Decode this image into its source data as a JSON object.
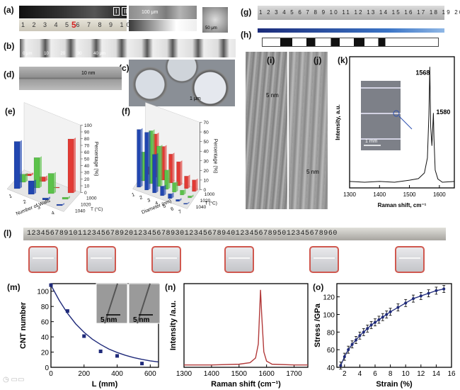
{
  "panels": {
    "a": "(a)",
    "b": "(b)",
    "c": "(c)",
    "d": "(d)",
    "e": "(e)",
    "f": "(f)",
    "g": "(g)",
    "h": "(h)",
    "i": "(i)",
    "j": "(j)",
    "k": "(k)",
    "l": "(l)",
    "m": "(m)",
    "n": "(n)",
    "o": "(o)"
  },
  "texts": {
    "a_ruler": "1 2 3 4 5 6 7 8 9 10",
    "a_mark": "5",
    "a_roman1": "I",
    "a_roman2": "II",
    "a_scale1": "100 μm",
    "a_scale2": "50 μm",
    "b_scale": "0 μm          10          20          30          40 μm",
    "c_scale": "1 μm",
    "d_scale": "10 nm",
    "i_scale": "5 nm",
    "j_scale": "5 nm",
    "k_scale": "1 mm",
    "g_ruler": "1 2 3 4 5 6 7 8 9 10 11 12 13 14 15 16 17 18 19 20",
    "l_ruler": "1234567891011234567892012345678930123456789401234567895012345678960"
  },
  "colors": {
    "blue": "#2146b0",
    "red": "#e23a34",
    "green": "#5bc24a",
    "curve_red": "#b23a3a",
    "navy": "#1f2a7a"
  },
  "chart_data": [
    {
      "id": "e",
      "type": "bar",
      "xlabel": "Number of Walls",
      "ylabel": "Percentage (%)",
      "zlabel": "T (°C)",
      "categories": [
        "1",
        "2",
        "3",
        "4"
      ],
      "ytick_labels": [
        "0",
        "10",
        "20",
        "30",
        "40",
        "50",
        "60",
        "70",
        "80",
        "90",
        "100"
      ],
      "ylim": [
        0,
        100
      ],
      "series": [
        {
          "name": "1000",
          "values": [
            3,
            7,
            0,
            80
          ]
        },
        {
          "name": "1020",
          "values": [
            12,
            45,
            30,
            3
          ]
        },
        {
          "name": "1040",
          "values": [
            70,
            20,
            3,
            2
          ]
        }
      ]
    },
    {
      "id": "f",
      "type": "bar",
      "xlabel": "Diameter (nm)",
      "ylabel": "Percentage (%)",
      "zlabel": "T (°C)",
      "categories": [
        "1",
        "2",
        "3",
        "4",
        "5",
        "6",
        "7"
      ],
      "ytick_labels": [
        "0",
        "10",
        "20",
        "30",
        "40",
        "50",
        "60",
        "70"
      ],
      "ylim": [
        0,
        70
      ],
      "series": [
        {
          "name": "1000",
          "values": [
            8,
            45,
            35,
            30,
            25,
            13,
            12
          ]
        },
        {
          "name": "1020",
          "values": [
            30,
            55,
            42,
            20,
            10,
            5,
            2
          ]
        },
        {
          "name": "1040",
          "values": [
            60,
            60,
            40,
            10,
            5,
            2,
            1
          ]
        }
      ]
    },
    {
      "id": "k",
      "type": "line",
      "xlabel": "Raman shift, cm⁻¹",
      "ylabel": "Intensity, a.u.",
      "xlim": [
        1300,
        1650
      ],
      "xticks": [
        1300,
        1400,
        1500,
        1600
      ],
      "annotations": [
        "1568",
        "1580"
      ],
      "x": [
        1300,
        1350,
        1400,
        1450,
        1500,
        1530,
        1550,
        1560,
        1565,
        1568,
        1571,
        1575,
        1578,
        1580,
        1582,
        1586,
        1595,
        1610,
        1650
      ],
      "y": [
        0.05,
        0.05,
        0.05,
        0.05,
        0.06,
        0.08,
        0.12,
        0.25,
        0.6,
        1.0,
        0.5,
        0.35,
        0.5,
        0.62,
        0.4,
        0.15,
        0.07,
        0.05,
        0.05
      ]
    },
    {
      "id": "m",
      "type": "scatter",
      "xlabel": "L (mm)",
      "ylabel": "CNT number",
      "xlim": [
        0,
        650
      ],
      "ylim": [
        0,
        110
      ],
      "xticks": [
        0,
        200,
        400,
        600
      ],
      "yticks": [
        0,
        20,
        40,
        60,
        80,
        100
      ],
      "x": [
        0,
        100,
        200,
        300,
        400,
        550
      ],
      "y": [
        108,
        74,
        41,
        21,
        15,
        5
      ],
      "fit_x": [
        0,
        50,
        100,
        150,
        200,
        250,
        300,
        350,
        400,
        450,
        500,
        550,
        600,
        650
      ],
      "fit_y": [
        108,
        88,
        71,
        57,
        46,
        37,
        30,
        24,
        19.5,
        15.8,
        12.8,
        10.4,
        8.5,
        7
      ],
      "inset_labels": [
        "5 nm",
        "5 nm"
      ]
    },
    {
      "id": "n",
      "type": "line",
      "xlabel": "Raman shift (cm⁻¹)",
      "ylabel": "Intensity /a.u.",
      "xlim": [
        1300,
        1750
      ],
      "xticks": [
        1300,
        1400,
        1500,
        1600,
        1700
      ],
      "x": [
        1300,
        1400,
        1500,
        1540,
        1560,
        1570,
        1578,
        1582,
        1590,
        1600,
        1620,
        1700,
        1750
      ],
      "y": [
        0.03,
        0.03,
        0.04,
        0.06,
        0.12,
        0.3,
        1.0,
        0.7,
        0.2,
        0.08,
        0.04,
        0.03,
        0.03
      ]
    },
    {
      "id": "o",
      "type": "line",
      "xlabel": "Strain (%)",
      "ylabel": "Stress /GPa",
      "xlim": [
        1,
        16
      ],
      "ylim": [
        40,
        135
      ],
      "xticks": [
        2,
        4,
        6,
        8,
        10,
        12,
        14,
        16
      ],
      "yticks": [
        40,
        60,
        80,
        100,
        120
      ],
      "x": [
        1.5,
        2,
        2.5,
        3,
        3.5,
        4,
        4.5,
        5,
        5.5,
        6,
        6.5,
        7,
        7.5,
        8,
        9,
        10,
        11,
        12,
        13,
        14,
        15
      ],
      "y": [
        42,
        52,
        60,
        66,
        71,
        76,
        80,
        84,
        88,
        91,
        94,
        97,
        100,
        103,
        108,
        113,
        118,
        121,
        124,
        127,
        129
      ]
    }
  ]
}
